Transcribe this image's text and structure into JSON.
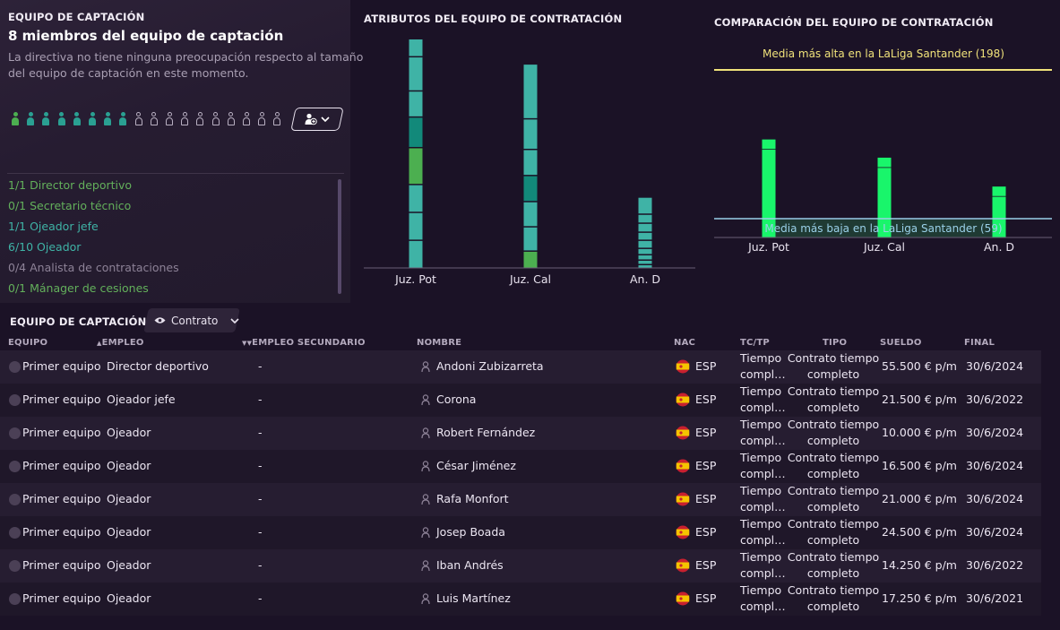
{
  "staff_panel": {
    "section_title": "EQUIPO DE CAPTACIÓN",
    "headline": "8 miembros del equipo de captación",
    "description_line1": "La directiva no tiene ninguna preocupación respecto al tamaño",
    "description_line2": "del equipo de captación en este momento.",
    "capacity": {
      "filled": 8,
      "total": 18
    },
    "filled_colors": [
      "#4caf50",
      "#2aa092",
      "#2aa092",
      "#2aa092",
      "#2aa092",
      "#2aa092",
      "#2aa092",
      "#2aa092"
    ],
    "add_button_icon": "add-staff-icon",
    "roles": [
      {
        "label": "1/1 Director deportivo",
        "color": "#63b05b"
      },
      {
        "label": "0/1 Secretario técnico",
        "color": "#63b05b"
      },
      {
        "label": "1/1 Ojeador jefe",
        "color": "#3fb3a6"
      },
      {
        "label": "6/10 Ojeador",
        "color": "#3fb3a6"
      },
      {
        "label": "0/4 Analista de contrataciones",
        "color": "#8d8297"
      },
      {
        "label": "0/1 Mánager de cesiones",
        "color": "#63b05b"
      }
    ]
  },
  "attributes_chart": {
    "title": "ATRIBUTOS DEL EQUIPO DE CONTRATACIÓN"
  },
  "comparison_chart": {
    "title": "COMPARACIÓN DEL EQUIPO DE CONTRATACIÓN",
    "high_label": "Media más alta en la LaLiga Santander (198)",
    "low_label": "Media más baja en la LaLiga Santander (59)"
  },
  "chart_data": [
    {
      "type": "bar",
      "title": "ATRIBUTOS DEL EQUIPO DE CONTRATACIÓN",
      "categories": [
        "Juz. Pot",
        "Juz. Cal",
        "An. D"
      ],
      "stacked": true,
      "segments": [
        [
          {
            "value": 31,
            "color": "#3fb3a6"
          },
          {
            "value": 31,
            "color": "#3fb3a6"
          },
          {
            "value": 31,
            "color": "#3fb3a6"
          },
          {
            "value": 41,
            "color": "#4caf50"
          },
          {
            "value": 34,
            "color": "#12897a"
          },
          {
            "value": 29,
            "color": "#3fb3a6"
          },
          {
            "value": 38,
            "color": "#3fb3a6"
          },
          {
            "value": 20,
            "color": "#3fb3a6"
          }
        ],
        [
          {
            "value": 19,
            "color": "#4caf50"
          },
          {
            "value": 27,
            "color": "#3fb3a6"
          },
          {
            "value": 28,
            "color": "#3fb3a6"
          },
          {
            "value": 29,
            "color": "#12897a"
          },
          {
            "value": 29,
            "color": "#3fb3a6"
          },
          {
            "value": 34,
            "color": "#3fb3a6"
          },
          {
            "value": 61,
            "color": "#3fb3a6"
          }
        ],
        [
          {
            "value": 4,
            "color": "#3fb3a6"
          },
          {
            "value": 5,
            "color": "#3fb3a6"
          },
          {
            "value": 6,
            "color": "#3fb3a6"
          },
          {
            "value": 7,
            "color": "#3fb3a6"
          },
          {
            "value": 9,
            "color": "#3fb3a6"
          },
          {
            "value": 9,
            "color": "#3fb3a6"
          },
          {
            "value": 10,
            "color": "#3fb3a6"
          },
          {
            "value": 10,
            "color": "#3fb3a6"
          },
          {
            "value": 19,
            "color": "#3fb3a6"
          }
        ]
      ],
      "ylim": [
        0,
        256
      ]
    },
    {
      "type": "bar",
      "title": "COMPARACIÓN DEL EQUIPO DE CONTRATACIÓN",
      "categories": [
        "Juz. Pot",
        "Juz. Cal",
        "An. D"
      ],
      "values": [
        133,
        116,
        89
      ],
      "reference_lines": [
        {
          "label": "Media más alta en la LaLiga Santander (198)",
          "value": 198,
          "color": "#f0e27a"
        },
        {
          "label": "Media más baja en la LaLiga Santander (59)",
          "value": 59,
          "color": "#9ad0e8"
        }
      ],
      "bar_color": "#19f56b",
      "ylim": [
        28,
        198
      ]
    }
  ],
  "table": {
    "section_title": "EQUIPO DE CAPTACIÓN",
    "view_label": "Contrato",
    "headers": {
      "team": "EQUIPO",
      "job": "EMPLEO",
      "secondary": "EMPLEO SECUNDARIO",
      "name": "NOMBRE",
      "nat": "NAC",
      "type_short": "TC/TP",
      "type": "TIPO",
      "salary": "SUELDO",
      "end": "FINAL"
    },
    "rows": [
      {
        "team": "Primer equipo",
        "job": "Director deportivo",
        "secondary": "-",
        "name": "Andoni Zubizarreta",
        "nat": "ESP",
        "tc1": "Tiempo",
        "tc2": "compl…",
        "type1": "Contrato tiempo",
        "type2": "completo",
        "salary": "55.500 € p/m",
        "end": "30/6/2024"
      },
      {
        "team": "Primer equipo",
        "job": "Ojeador jefe",
        "secondary": "-",
        "name": "Corona",
        "nat": "ESP",
        "tc1": "Tiempo",
        "tc2": "compl…",
        "type1": "Contrato tiempo",
        "type2": "completo",
        "salary": "21.500 € p/m",
        "end": "30/6/2022"
      },
      {
        "team": "Primer equipo",
        "job": "Ojeador",
        "secondary": "-",
        "name": "Robert Fernández",
        "nat": "ESP",
        "tc1": "Tiempo",
        "tc2": "compl…",
        "type1": "Contrato tiempo",
        "type2": "completo",
        "salary": "10.000 € p/m",
        "end": "30/6/2024"
      },
      {
        "team": "Primer equipo",
        "job": "Ojeador",
        "secondary": "-",
        "name": "César Jiménez",
        "nat": "ESP",
        "tc1": "Tiempo",
        "tc2": "compl…",
        "type1": "Contrato tiempo",
        "type2": "completo",
        "salary": "16.500 € p/m",
        "end": "30/6/2024"
      },
      {
        "team": "Primer equipo",
        "job": "Ojeador",
        "secondary": "-",
        "name": "Rafa Monfort",
        "nat": "ESP",
        "tc1": "Tiempo",
        "tc2": "compl…",
        "type1": "Contrato tiempo",
        "type2": "completo",
        "salary": "21.000 € p/m",
        "end": "30/6/2024"
      },
      {
        "team": "Primer equipo",
        "job": "Ojeador",
        "secondary": "-",
        "name": "Josep Boada",
        "nat": "ESP",
        "tc1": "Tiempo",
        "tc2": "compl…",
        "type1": "Contrato tiempo",
        "type2": "completo",
        "salary": "24.500 € p/m",
        "end": "30/6/2024"
      },
      {
        "team": "Primer equipo",
        "job": "Ojeador",
        "secondary": "-",
        "name": "Iban Andrés",
        "nat": "ESP",
        "tc1": "Tiempo",
        "tc2": "compl…",
        "type1": "Contrato tiempo",
        "type2": "completo",
        "salary": "14.250 € p/m",
        "end": "30/6/2022"
      },
      {
        "team": "Primer equipo",
        "job": "Ojeador",
        "secondary": "-",
        "name": "Luis Martínez",
        "nat": "ESP",
        "tc1": "Tiempo",
        "tc2": "compl…",
        "type1": "Contrato tiempo",
        "type2": "completo",
        "salary": "17.250 € p/m",
        "end": "30/6/2021"
      }
    ]
  }
}
